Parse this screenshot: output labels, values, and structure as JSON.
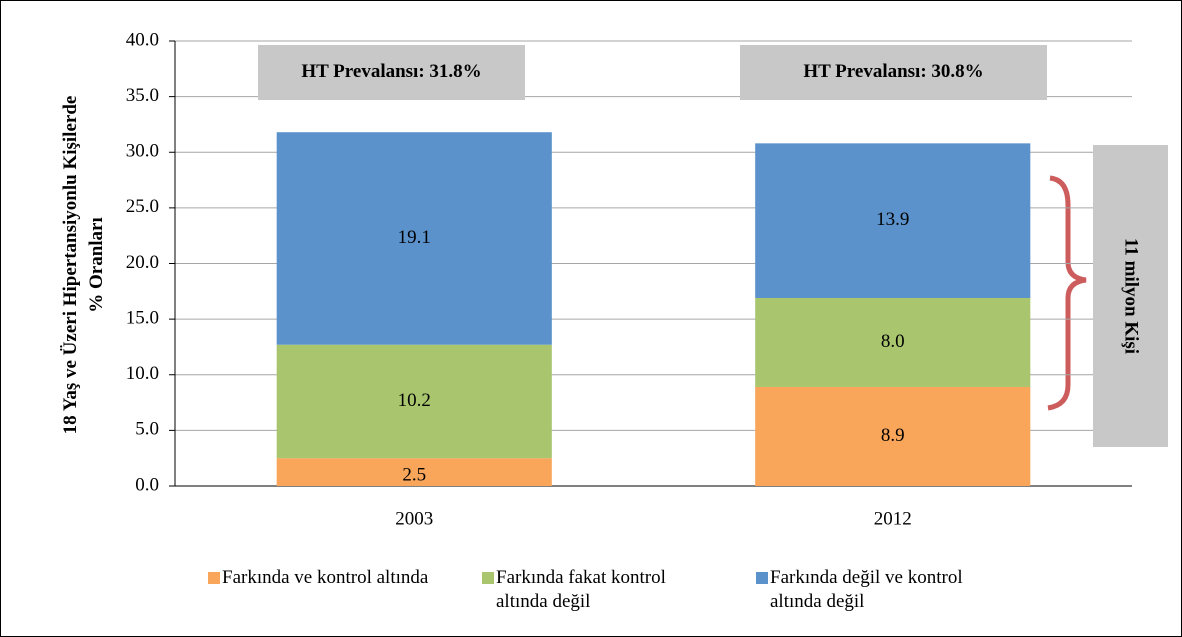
{
  "chart_data": {
    "type": "stacked_bar",
    "y_label_lines": [
      "18 Yaş ve Üzeri Hipertansiyonlu Kişilerde",
      "% Oranları"
    ],
    "categories": [
      "2003",
      "2012"
    ],
    "series": [
      {
        "name": "Farkında ve kontrol altında",
        "color": "#f9a65a",
        "values": [
          2.5,
          8.9
        ]
      },
      {
        "name": "Farkında fakat kontrol altında değil",
        "color": "#a9c66f",
        "values": [
          10.2,
          8.0
        ],
        "value_labels": [
          "10.2",
          "8.0"
        ]
      },
      {
        "name": "Farkında değil ve kontrol altında değil",
        "color": "#5b92cb",
        "values": [
          19.1,
          13.9
        ]
      }
    ],
    "ylim": [
      0,
      40
    ],
    "yticks": [
      {
        "value": 0,
        "label": "0.0"
      },
      {
        "value": 5,
        "label": "5.0"
      },
      {
        "value": 10,
        "label": "10.0"
      },
      {
        "value": 15,
        "label": "15.0"
      },
      {
        "value": 20,
        "label": "20.0"
      },
      {
        "value": 25,
        "label": "25.0"
      },
      {
        "value": 30,
        "label": "30.0"
      },
      {
        "value": 35,
        "label": "35.0"
      },
      {
        "value": 40,
        "label": "40.0"
      }
    ],
    "grid": true,
    "annotations": [
      "HT Prevalansı: 31.8%",
      "HT Prevalansı: 30.8%",
      "11 milyon Kişi"
    ]
  }
}
